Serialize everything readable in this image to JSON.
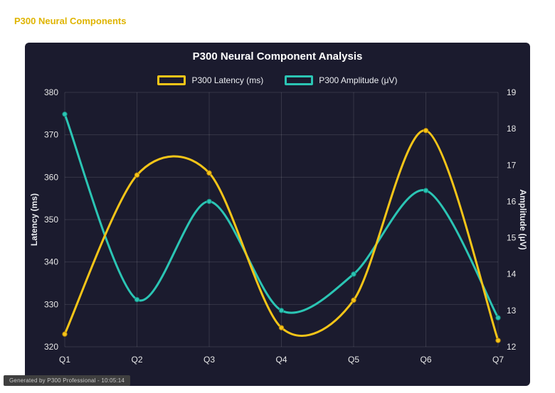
{
  "header": {
    "title": "P300 Neural Components",
    "color": "#dfb400"
  },
  "footer": {
    "text": "Generated by P300 Professional - 10:05:14"
  },
  "chart": {
    "title": "P300 Neural Component Analysis",
    "left_axis_label": "Latency (ms)",
    "right_axis_label": "Amplitude (μV)",
    "legend": [
      {
        "label": "P300 Latency (ms)",
        "color": "#f5c518"
      },
      {
        "label": "P300 Amplitude (μV)",
        "color": "#2bc5b4"
      }
    ],
    "background": "#1b1b2e"
  },
  "chart_data": {
    "type": "line",
    "title": "P300 Neural Component Analysis",
    "categories": [
      "Q1",
      "Q2",
      "Q3",
      "Q4",
      "Q5",
      "Q6",
      "Q7"
    ],
    "series": [
      {
        "name": "P300 Latency (ms)",
        "axis": "left",
        "color": "#f5c518",
        "point_border": "#b8860b",
        "values": [
          323,
          360.5,
          361,
          324.5,
          331,
          371,
          321.5
        ]
      },
      {
        "name": "P300 Amplitude (μV)",
        "axis": "right",
        "color": "#2bc5b4",
        "point_border": "#15897e",
        "values": [
          18.4,
          13.3,
          16.0,
          13.0,
          14.0,
          16.3,
          12.8
        ]
      }
    ],
    "left_axis": {
      "label": "Latency (ms)",
      "min": 320,
      "max": 380,
      "step": 10
    },
    "right_axis": {
      "label": "Amplitude (μV)",
      "min": 12,
      "max": 19,
      "step": 1
    },
    "grid": true,
    "legend_position": "top"
  }
}
